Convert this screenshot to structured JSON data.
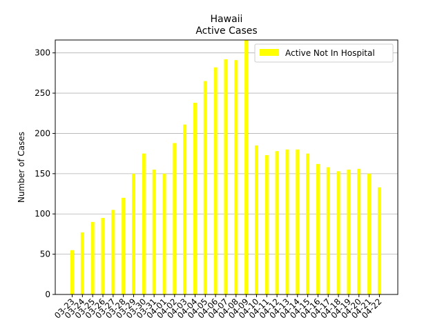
{
  "chart_data": {
    "type": "bar",
    "title": "Hawaii",
    "subtitle": "Active Cases",
    "xlabel": "",
    "ylabel": "Number of Cases",
    "ylim": [
      0,
      316
    ],
    "yticks": [
      0,
      50,
      100,
      150,
      200,
      250,
      300
    ],
    "grid": "horizontal",
    "legend_position": "top-right",
    "categories": [
      "03-23",
      "03-24",
      "03-25",
      "03-26",
      "03-27",
      "03-28",
      "03-29",
      "03-30",
      "03-31",
      "04-01",
      "04-02",
      "04-03",
      "04-04",
      "04-05",
      "04-06",
      "04-07",
      "04-08",
      "04-09",
      "04-10",
      "04-11",
      "04-12",
      "04-13",
      "04-14",
      "04-15",
      "04-16",
      "04-17",
      "04-18",
      "04-19",
      "04-20",
      "04-21",
      "04-22"
    ],
    "series": [
      {
        "name": "Active Not In Hospital",
        "color": "#ffff00",
        "values": [
          55,
          77,
          90,
          95,
          105,
          120,
          150,
          175,
          155,
          150,
          188,
          211,
          238,
          265,
          282,
          292,
          291,
          316,
          185,
          173,
          178,
          180,
          180,
          175,
          162,
          158,
          153,
          155,
          156,
          150,
          133
        ]
      }
    ]
  }
}
